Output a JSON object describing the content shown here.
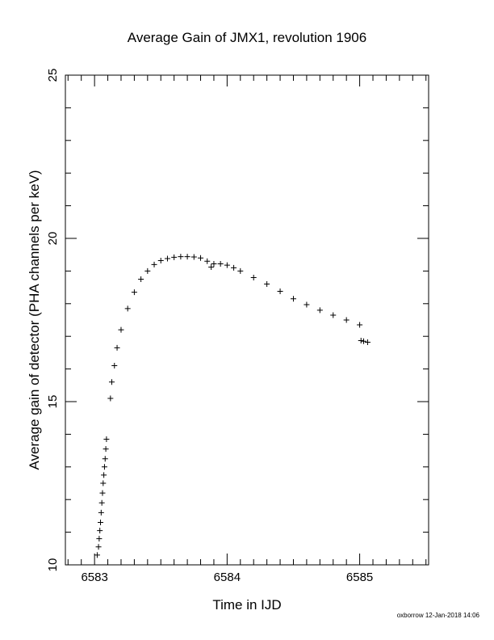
{
  "chart_data": {
    "type": "scatter",
    "title": "Average Gain of JMX1, revolution 1906",
    "xlabel": "Time in IJD",
    "ylabel": "Average gain of detector (PHA channels per keV)",
    "xlim": [
      6582.78,
      6585.52
    ],
    "ylim": [
      10,
      25
    ],
    "xticks": [
      6583,
      6584,
      6585
    ],
    "yticks": [
      10,
      15,
      20,
      25
    ],
    "tick_labels_x": [
      "6583",
      "6584",
      "6585"
    ],
    "tick_labels_y": [
      "10",
      "15",
      "20",
      "25"
    ],
    "grid": false,
    "marker": "plus",
    "series": [
      {
        "x": [
          6583.02,
          6583.03,
          6583.035,
          6583.04,
          6583.045,
          6583.05,
          6583.055,
          6583.06,
          6583.065,
          6583.07,
          6583.075,
          6583.08,
          6583.085,
          6583.09,
          6583.12,
          6583.13,
          6583.15,
          6583.17,
          6583.2,
          6583.25,
          6583.3,
          6583.35,
          6583.4,
          6583.45,
          6583.5,
          6583.55,
          6583.6,
          6583.65,
          6583.7,
          6583.75,
          6583.8,
          6583.85,
          6583.88,
          6583.9,
          6583.95,
          6584.0,
          6584.05,
          6584.1,
          6584.2,
          6584.3,
          6584.4,
          6584.5,
          6584.6,
          6584.7,
          6584.8,
          6584.9,
          6585.0,
          6585.01,
          6585.03,
          6585.06
        ],
        "y": [
          10.3,
          10.55,
          10.8,
          11.05,
          11.3,
          11.6,
          11.9,
          12.2,
          12.5,
          12.75,
          13.0,
          13.25,
          13.55,
          13.85,
          15.1,
          15.6,
          16.1,
          16.65,
          17.2,
          17.85,
          18.35,
          18.75,
          19.0,
          19.2,
          19.32,
          19.38,
          19.42,
          19.44,
          19.44,
          19.43,
          19.4,
          19.3,
          19.12,
          19.22,
          19.22,
          19.18,
          19.1,
          19.0,
          18.8,
          18.6,
          18.38,
          18.15,
          17.97,
          17.8,
          17.65,
          17.5,
          17.35,
          16.87,
          16.85,
          16.82
        ]
      }
    ]
  },
  "footer": {
    "credit": "oxborrow 12-Jan-2018 14:06"
  }
}
